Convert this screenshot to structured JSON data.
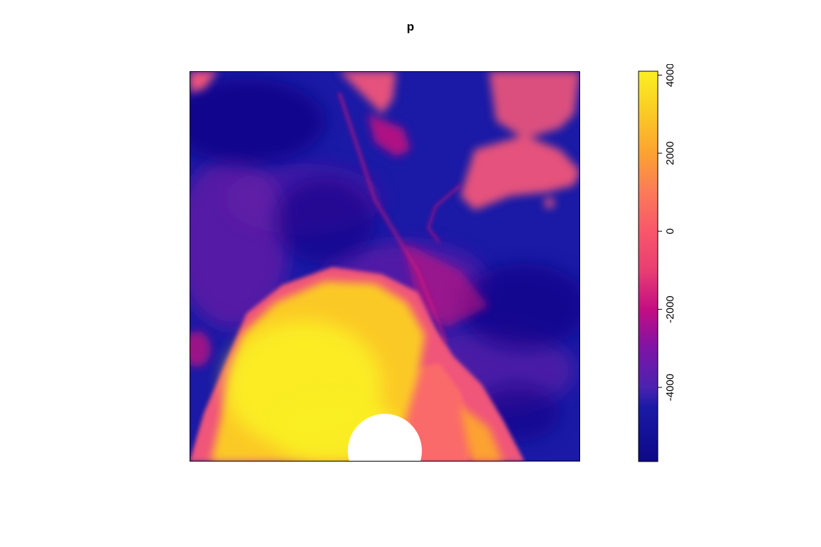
{
  "title": "p",
  "legend": {
    "min": -5900,
    "max": 4100,
    "ticks": [
      {
        "value": -4000,
        "label": "-4000"
      },
      {
        "value": -2000,
        "label": "-2000"
      },
      {
        "value": 0,
        "label": "0"
      },
      {
        "value": 2000,
        "label": "2000"
      },
      {
        "value": 4000,
        "label": "4000"
      }
    ],
    "palette": [
      {
        "value": -5900,
        "color": "#0d0887"
      },
      {
        "value": -4500,
        "color": "#1a1aa6"
      },
      {
        "value": -4000,
        "color": "#4b22b0"
      },
      {
        "value": -3000,
        "color": "#7d14a6"
      },
      {
        "value": -2000,
        "color": "#c40e82"
      },
      {
        "value": -1000,
        "color": "#e83e72"
      },
      {
        "value": 0,
        "color": "#f9566b"
      },
      {
        "value": 1000,
        "color": "#fb7a58"
      },
      {
        "value": 2000,
        "color": "#fca232"
      },
      {
        "value": 3000,
        "color": "#fbc925"
      },
      {
        "value": 4100,
        "color": "#fbef22"
      }
    ]
  },
  "colors": {
    "deep": "#0d0887",
    "blue": "#1a1aa6",
    "violet": "#6a1ba6",
    "magenta": "#d4147a",
    "pink": "#f0557a",
    "salmon": "#fa6a6a",
    "orange": "#fca232",
    "gold": "#fbc925",
    "yellow": "#fbef22",
    "nodata": "#ffffff"
  }
}
